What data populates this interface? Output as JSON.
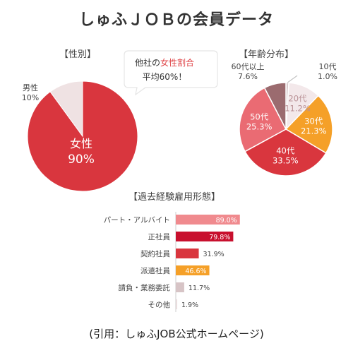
{
  "title": "しゅふＪＯＢの会員データ",
  "callout": {
    "line1_prefix": "他社の",
    "line1_highlight": "女性割合",
    "line2": "平均60%！"
  },
  "footer": "(引用：しゅふJOB公式ホームページ)",
  "colors": {
    "female": "#d9363e",
    "male": "#efe2e3",
    "age10": "#d8c9cc",
    "age20": "#f3e8ea",
    "age30": "#f5a028",
    "age40": "#d9363e",
    "age50": "#ea6b73",
    "age60": "#9b6b6f",
    "highlight": "#e0484b"
  },
  "chart_data": [
    {
      "type": "pie",
      "title": "【性別】",
      "slices": [
        {
          "name": "女性",
          "label": "90%",
          "value": 90
        },
        {
          "name": "男性",
          "label": "10%",
          "value": 10
        }
      ]
    },
    {
      "type": "pie",
      "title": "【年齢分布】",
      "slices": [
        {
          "name": "10代",
          "label": "1.0%",
          "value": 1.0
        },
        {
          "name": "20代",
          "label": "11.2%",
          "value": 11.2
        },
        {
          "name": "30代",
          "label": "21.3%",
          "value": 21.3
        },
        {
          "name": "40代",
          "label": "33.5%",
          "value": 33.5
        },
        {
          "name": "50代",
          "label": "25.3%",
          "value": 25.3
        },
        {
          "name": "60代以上",
          "label": "7.6%",
          "value": 7.6
        }
      ]
    },
    {
      "type": "bar",
      "orientation": "horizontal",
      "title": "【過去経験雇用形態】",
      "categories": [
        "パート・アルバイト",
        "正社員",
        "契約社員",
        "派遣社員",
        "請負・業務委託",
        "その他"
      ],
      "values": [
        89.0,
        79.8,
        31.9,
        46.6,
        11.7,
        1.9
      ],
      "value_labels": [
        "89.0%",
        "79.8%",
        "31.9%",
        "46.6%",
        "11.7%",
        "1.9%"
      ],
      "colors": [
        "#f08a8e",
        "#c8102e",
        "#d9363e",
        "#f5a028",
        "#d7c4c6",
        "#e8dcdd"
      ],
      "xlim": [
        0,
        100
      ]
    }
  ]
}
